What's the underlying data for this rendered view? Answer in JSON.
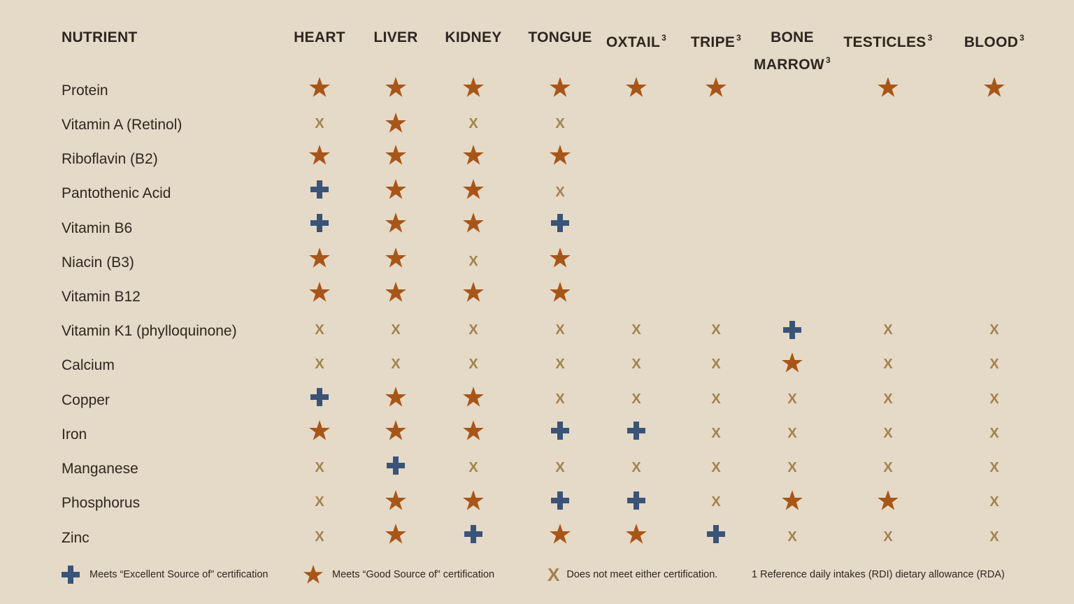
{
  "colors": {
    "background": "#e5d9c7",
    "text": "#2e2620",
    "star": "#a85618",
    "plus": "#3a5478",
    "x": "#a2824d"
  },
  "header": {
    "nutrient": "NUTRIENT",
    "columns": [
      {
        "label": "HEART",
        "sup": ""
      },
      {
        "label": "LIVER",
        "sup": ""
      },
      {
        "label": "KIDNEY",
        "sup": ""
      },
      {
        "label": "TONGUE",
        "sup": ""
      },
      {
        "label": "OXTAIL",
        "sup": "3"
      },
      {
        "label": "TRIPE",
        "sup": "3"
      },
      {
        "label": "BONE",
        "label2": "MARROW",
        "sup": "3"
      },
      {
        "label": "TESTICLES",
        "sup": "3"
      },
      {
        "label": "BLOOD",
        "sup": "3"
      }
    ]
  },
  "rows": [
    {
      "nutrient": "Protein",
      "values": [
        "star",
        "star",
        "star",
        "star",
        "star",
        "star",
        "",
        "star",
        "star"
      ]
    },
    {
      "nutrient": "Vitamin A (Retinol)",
      "values": [
        "x",
        "star",
        "x",
        "x",
        "",
        "",
        "",
        "",
        ""
      ]
    },
    {
      "nutrient": "Riboflavin (B2)",
      "values": [
        "star",
        "star",
        "star",
        "star",
        "",
        "",
        "",
        "",
        ""
      ]
    },
    {
      "nutrient": "Pantothenic Acid",
      "values": [
        "plus",
        "star",
        "star",
        "x",
        "",
        "",
        "",
        "",
        ""
      ]
    },
    {
      "nutrient": "Vitamin B6",
      "values": [
        "plus",
        "star",
        "star",
        "plus",
        "",
        "",
        "",
        "",
        ""
      ]
    },
    {
      "nutrient": "Niacin (B3)",
      "values": [
        "star",
        "star",
        "x",
        "star",
        "",
        "",
        "",
        "",
        ""
      ]
    },
    {
      "nutrient": "Vitamin B12",
      "values": [
        "star",
        "star",
        "star",
        "star",
        "",
        "",
        "",
        "",
        ""
      ]
    },
    {
      "nutrient": "Vitamin K1 (phylloquinone)",
      "values": [
        "x",
        "x",
        "x",
        "x",
        "x",
        "x",
        "plus",
        "x",
        "x"
      ]
    },
    {
      "nutrient": "Calcium",
      "values": [
        "x",
        "x",
        "x",
        "x",
        "x",
        "x",
        "star",
        "x",
        "x"
      ]
    },
    {
      "nutrient": "Copper",
      "values": [
        "plus",
        "star",
        "star",
        "x",
        "x",
        "x",
        "x",
        "x",
        "x"
      ]
    },
    {
      "nutrient": "Iron",
      "values": [
        "star",
        "star",
        "star",
        "plus",
        "plus",
        "x",
        "x",
        "x",
        "x"
      ]
    },
    {
      "nutrient": "Manganese",
      "values": [
        "x",
        "plus",
        "x",
        "x",
        "x",
        "x",
        "x",
        "x",
        "x"
      ]
    },
    {
      "nutrient": "Phosphorus",
      "values": [
        "x",
        "star",
        "star",
        "plus",
        "plus",
        "x",
        "star",
        "star",
        "x"
      ]
    },
    {
      "nutrient": "Zinc",
      "values": [
        "x",
        "star",
        "plus",
        "star",
        "star",
        "plus",
        "x",
        "x",
        "x"
      ]
    }
  ],
  "legend": {
    "excellent": "Meets “Excellent Source of” certification",
    "good": "Meets “Good Source of” certification",
    "none_symbol": "X",
    "none": "Does not meet either certification.",
    "footnote": "1 Reference daily intakes (RDI) dietary allowance (RDA)"
  }
}
